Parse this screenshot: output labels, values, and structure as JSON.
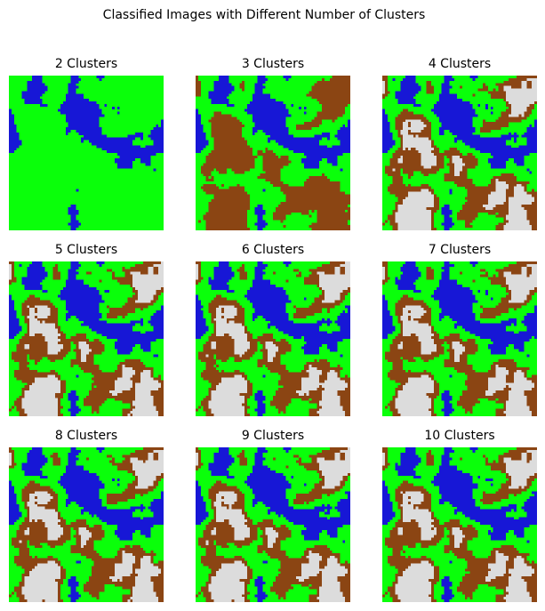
{
  "figure": {
    "title": "Classified Images with Different Number of Clusters"
  },
  "panels": [
    {
      "title": "2 Clusters",
      "clusters": 2
    },
    {
      "title": "3 Clusters",
      "clusters": 3
    },
    {
      "title": "4 Clusters",
      "clusters": 4
    },
    {
      "title": "5 Clusters",
      "clusters": 5
    },
    {
      "title": "6 Clusters",
      "clusters": 6
    },
    {
      "title": "7 Clusters",
      "clusters": 7
    },
    {
      "title": "8 Clusters",
      "clusters": 8
    },
    {
      "title": "9 Clusters",
      "clusters": 9
    },
    {
      "title": "10 Clusters",
      "clusters": 10
    }
  ],
  "colors": {
    "water": "#1717d6",
    "vegetation": "#0aff0a",
    "soil": "#8b4513",
    "bare": "#dcdcdc"
  }
}
